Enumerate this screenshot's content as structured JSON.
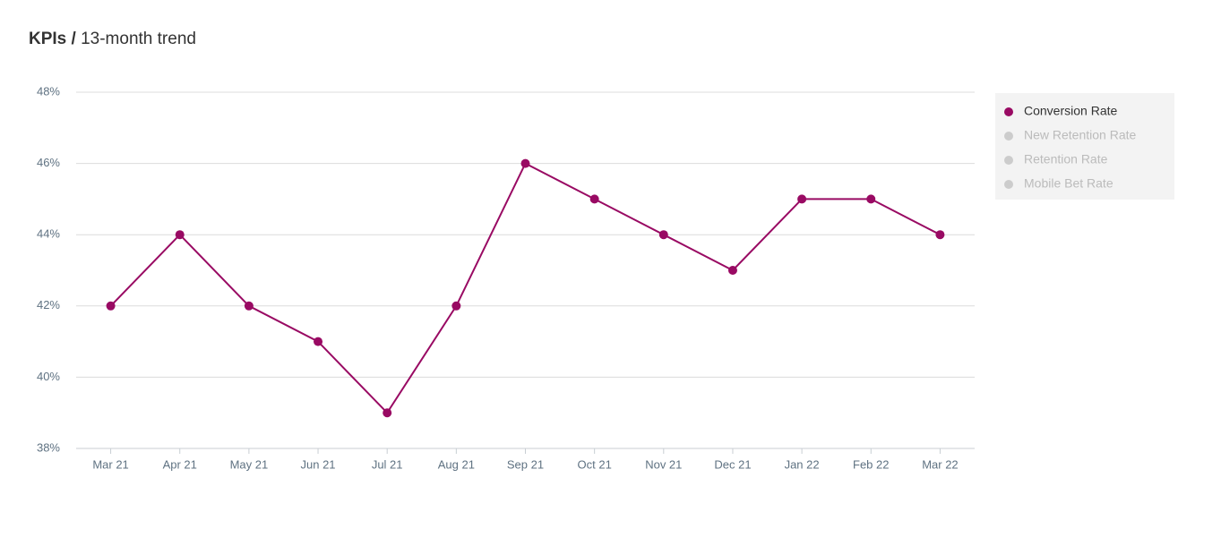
{
  "chart_data": {
    "type": "line",
    "title": "KPIs /",
    "subtitle": "13-month trend",
    "categories": [
      "Mar 21",
      "Apr 21",
      "May 21",
      "Jun 21",
      "Jul 21",
      "Aug 21",
      "Sep 21",
      "Oct 21",
      "Nov 21",
      "Dec 21",
      "Jan 22",
      "Feb 22",
      "Mar 22"
    ],
    "series": [
      {
        "name": "Conversion Rate",
        "color": "#990a63",
        "visible": true,
        "values": [
          42,
          44,
          42,
          41,
          39,
          42,
          46,
          45,
          44,
          43,
          45,
          45,
          44
        ]
      },
      {
        "name": "New Retention Rate",
        "color": "#cccccc",
        "visible": false
      },
      {
        "name": "Retention Rate",
        "color": "#cccccc",
        "visible": false
      },
      {
        "name": "Mobile Bet Rate",
        "color": "#cccccc",
        "visible": false
      }
    ],
    "ylim": [
      38,
      48
    ],
    "yticks": [
      {
        "value": 38,
        "label": "38%"
      },
      {
        "value": 40,
        "label": "40%"
      },
      {
        "value": 42,
        "label": "42%"
      },
      {
        "value": 44,
        "label": "44%"
      },
      {
        "value": 46,
        "label": "46%"
      },
      {
        "value": 48,
        "label": "48%"
      }
    ],
    "grid": true,
    "legend": "right"
  }
}
